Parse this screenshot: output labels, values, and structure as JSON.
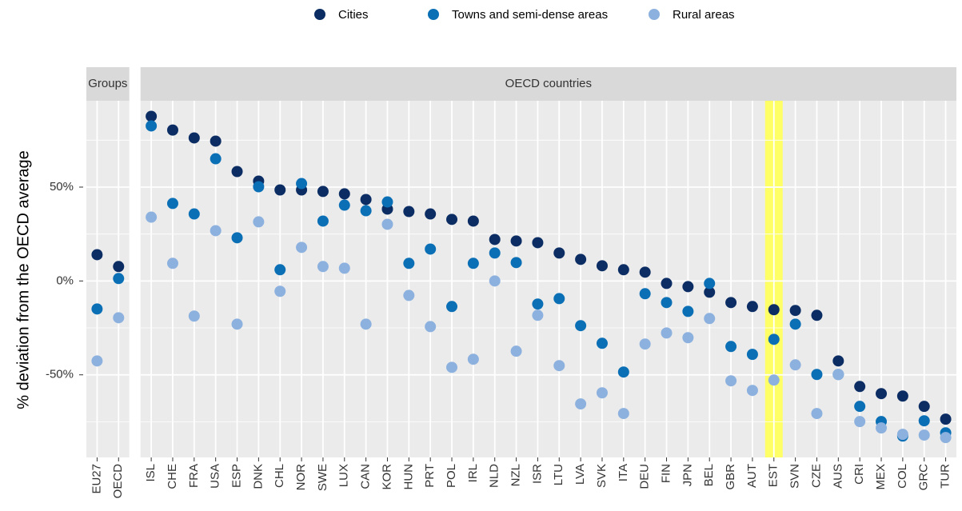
{
  "chart_data": {
    "type": "dot",
    "y_label": "% deviation from the OECD average",
    "ylim": [
      -94,
      96
    ],
    "yticks": [
      {
        "value": -50,
        "label": "-50%"
      },
      {
        "value": 0,
        "label": "0%"
      },
      {
        "value": 50,
        "label": "50%"
      }
    ],
    "yminor_ticks": [
      -75,
      -25,
      25,
      75
    ],
    "grid": true,
    "legend_position": "top",
    "highlight": "EST",
    "highlight_color": "#ffff66",
    "panels": [
      {
        "title": "Groups",
        "categories": [
          "EU27",
          "OECD"
        ]
      },
      {
        "title": "OECD countries",
        "categories": [
          "ISL",
          "CHE",
          "FRA",
          "USA",
          "ESP",
          "DNK",
          "CHL",
          "NOR",
          "SWE",
          "LUX",
          "CAN",
          "KOR",
          "HUN",
          "PRT",
          "POL",
          "IRL",
          "NLD",
          "NZL",
          "ISR",
          "LTU",
          "LVA",
          "SVK",
          "ITA",
          "DEU",
          "FIN",
          "JPN",
          "BEL",
          "GBR",
          "AUT",
          "EST",
          "SVN",
          "CZE",
          "AUS",
          "CRI",
          "MEX",
          "COL",
          "GRC",
          "TUR"
        ]
      }
    ],
    "series": [
      {
        "name": "Cities",
        "color": "#0b2d63",
        "values": [
          [
            14,
            7.7
          ],
          [
            87.7,
            80.4,
            76.2,
            74.5,
            58.3,
            53.2,
            48.5,
            48.5,
            47.7,
            46.4,
            43.4,
            38.3,
            37,
            35.7,
            32.8,
            31.9,
            22.1,
            21.3,
            20.4,
            14.9,
            11.5,
            8.1,
            6,
            4.7,
            -1.3,
            -3,
            -6,
            -11.5,
            -13.6,
            -15.3,
            -15.7,
            -18.3,
            -42.6,
            -56.2,
            -60,
            -61.3,
            -66.8,
            -73.6
          ]
        ]
      },
      {
        "name": "Towns and semi-dense areas",
        "color": "#0a6fb5",
        "values": [
          [
            -14.9,
            1.3
          ],
          [
            82.6,
            41.3,
            35.7,
            65.1,
            23,
            50.2,
            6,
            51.9,
            31.9,
            40.4,
            37.4,
            42.1,
            9.4,
            17,
            -13.6,
            9.4,
            14.9,
            9.8,
            -12.3,
            -9.4,
            -23.8,
            -33.2,
            -48.5,
            -6.8,
            -11.5,
            -16.2,
            -1.3,
            -34.9,
            -39.1,
            -31.1,
            -23,
            -49.8,
            -49.8,
            -66.8,
            -74.9,
            -82.6,
            -74.5,
            -80.9
          ]
        ]
      },
      {
        "name": "Rural areas",
        "color": "#8db1de",
        "values": [
          [
            -42.6,
            -19.6
          ],
          [
            34,
            9.4,
            -18.7,
            26.8,
            -23,
            31.5,
            -5.5,
            17.9,
            7.7,
            6.8,
            -23,
            30.2,
            -7.7,
            -24.3,
            -46,
            -41.7,
            0,
            -37.4,
            -18.3,
            -45.1,
            -65.5,
            -59.6,
            -70.6,
            -33.6,
            -27.7,
            -30.2,
            -20,
            -53.2,
            -58.3,
            -52.8,
            -44.7,
            -70.6,
            -49.8,
            -74.9,
            -78.3,
            -81.7,
            -82.1,
            -83.4
          ]
        ]
      }
    ]
  }
}
